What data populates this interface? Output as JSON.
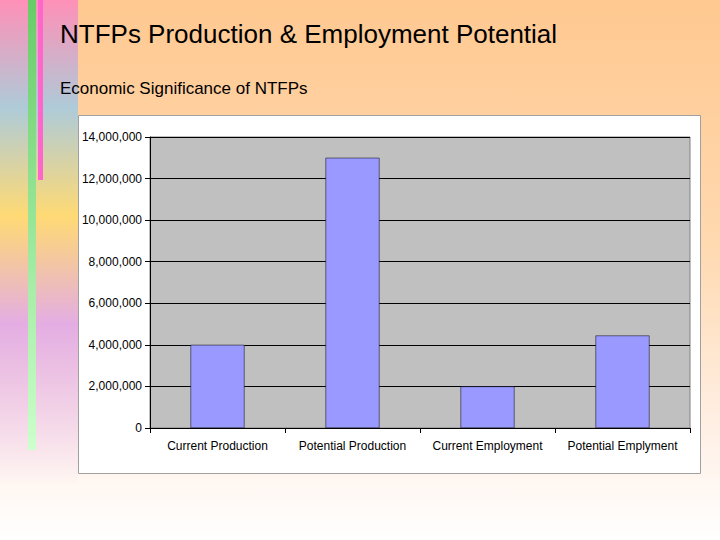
{
  "chart_data": {
    "type": "bar",
    "title": "NTFPs Production & Employment Potential",
    "subtitle": "Economic Significance of NTFPs",
    "categories": [
      "Current Production",
      "Potential Production",
      "Current Employment",
      "Potential Emplyment"
    ],
    "values": [
      4000000,
      13000000,
      2000000,
      4450000
    ],
    "color": "#9999ff",
    "ylim": [
      0,
      14000000
    ],
    "yticks": [
      0,
      {
        "value": 2000000,
        "label": "2,000,000"
      },
      {
        "value": 4000000,
        "label": "4,000,000"
      },
      {
        "value": 6000000,
        "label": "6,000,000"
      },
      {
        "value": 8000000,
        "label": "8,000,000"
      },
      {
        "value": 10000000,
        "label": "10,000,000"
      },
      {
        "value": 12000000,
        "label": "12,000,000"
      },
      {
        "value": 14000000,
        "label": "14,000,000"
      }
    ],
    "grid": true
  }
}
